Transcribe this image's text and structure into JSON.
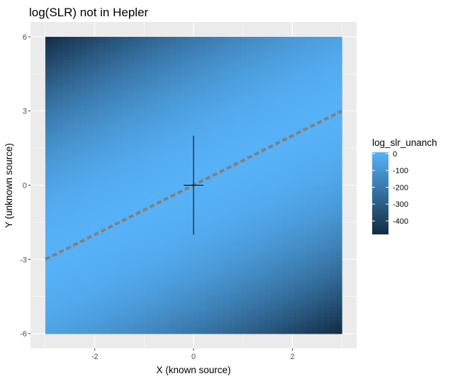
{
  "chart_data": {
    "type": "heatmap",
    "title": "log(SLR) not in Hepler",
    "xlabel": "X (known source)",
    "ylabel": "Y (unknown source)",
    "xlim": [
      -3.3,
      3.3
    ],
    "ylim": [
      -6.6,
      6.6
    ],
    "x_ticks": [
      {
        "value": -2,
        "label": "-2"
      },
      {
        "value": 0,
        "label": "0"
      },
      {
        "value": 2,
        "label": "2"
      }
    ],
    "y_ticks": [
      {
        "value": -6,
        "label": "-6"
      },
      {
        "value": -3,
        "label": "-3"
      },
      {
        "value": 0,
        "label": "0"
      },
      {
        "value": 3,
        "label": "3"
      },
      {
        "value": 6,
        "label": "6"
      }
    ],
    "tile_extent": {
      "x": [
        -3,
        3
      ],
      "y": [
        -6,
        6
      ]
    },
    "fill_scale": {
      "name": "log_slr_unanch",
      "min": -480,
      "max": 0,
      "low_color": "#132B43",
      "high_color": "#56B1F7",
      "breaks": [
        {
          "value": 0,
          "label": "0"
        },
        {
          "value": -100,
          "label": "-100"
        },
        {
          "value": -200,
          "label": "-200"
        },
        {
          "value": -300,
          "label": "-300"
        },
        {
          "value": -400,
          "label": "-400"
        }
      ]
    },
    "ridge_line": {
      "slope": 1,
      "color": "#808080",
      "x_range": [
        -3,
        3
      ]
    },
    "crosshair": {
      "center": [
        0,
        0
      ],
      "vertical": {
        "x": 0,
        "y": [
          -2,
          2
        ]
      },
      "horizontal": {
        "y": 0,
        "x": [
          -0.2,
          0.2
        ]
      },
      "color": "#000000"
    },
    "grid": true,
    "panel_background": "#EBEBEB",
    "grid_color": "#FFFFFF",
    "legend_position": "right"
  }
}
